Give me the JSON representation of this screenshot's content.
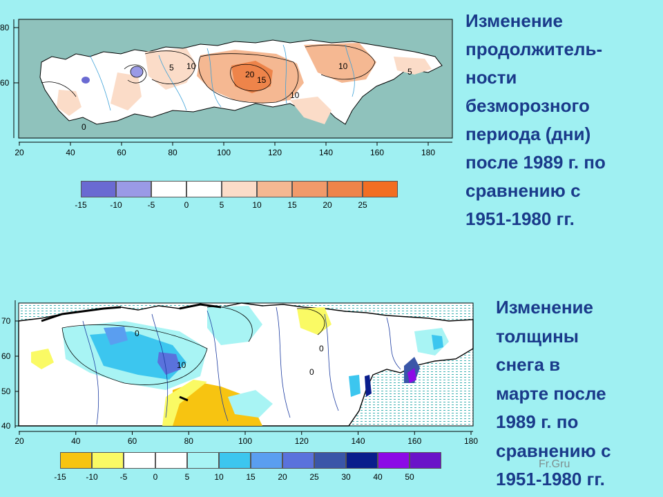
{
  "map1": {
    "caption": "Изменение\nпродолжитель-\nности\nбезморозного\nпериода (дни)\nпосле 1989 г. по\nсравнению с\n1951-1980 гг.",
    "x_ticks": [
      "20",
      "40",
      "60",
      "80",
      "100",
      "120",
      "140",
      "160",
      "180"
    ],
    "y_ticks": [
      "80",
      "60"
    ],
    "legend_colors": [
      "#6a6ad2",
      "#9a9ae6",
      "#ffffff",
      "#ffffff",
      "#fbdcc8",
      "#f5b892",
      "#f19a6a",
      "#ee844a",
      "#f26e22"
    ],
    "legend_labels": [
      "-15",
      "-10",
      "-5",
      "0",
      "5",
      "10",
      "15",
      "20",
      "25"
    ],
    "contour_labels": [
      "5",
      "10",
      "15",
      "20",
      "0"
    ]
  },
  "map2": {
    "caption": "Изменение\nтолщины\nснега в\nмарте после\n1989 г. по\nсравнению с\n1951-1980 гг.",
    "x_ticks": [
      "20",
      "40",
      "60",
      "80",
      "100",
      "120",
      "140",
      "160",
      "180"
    ],
    "y_ticks": [
      "70",
      "60",
      "50",
      "40"
    ],
    "legend_colors": [
      "#f7c411",
      "#fafa64",
      "#ffffff",
      "#ffffff",
      "#a8f4f4",
      "#3cc6ef",
      "#5a9ef0",
      "#5a72dc",
      "#3a56a8",
      "#0a1e8c",
      "#8c0ae6",
      "#6a14c8"
    ],
    "legend_labels": [
      "-15",
      "-10",
      "-5",
      "0",
      "5",
      "10",
      "15",
      "20",
      "25",
      "30",
      "40",
      "50"
    ],
    "contour_labels": [
      "0",
      "10"
    ]
  },
  "watermark": "Fr.Gru"
}
